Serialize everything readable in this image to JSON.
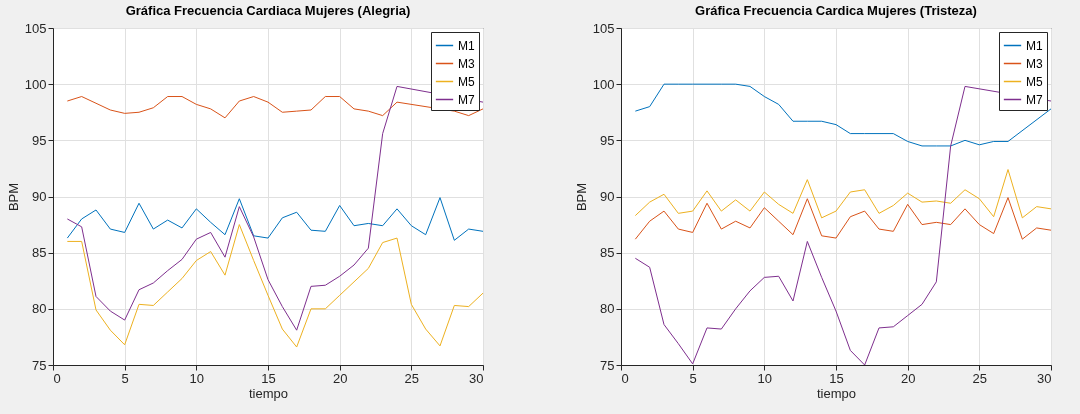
{
  "chart_data": [
    {
      "type": "line",
      "title": "Gráfica Frecuencia Cardiaca Mujeres (Alegria)",
      "xlabel": "tiempo",
      "ylabel": "BPM",
      "x": [
        1,
        2,
        3,
        4,
        5,
        6,
        7,
        8,
        9,
        10,
        11,
        12,
        13,
        14,
        15,
        16,
        17,
        18,
        19,
        20,
        21,
        22,
        23,
        24,
        25,
        26,
        27,
        28,
        29,
        30
      ],
      "xlim": [
        0,
        30
      ],
      "xticks": [
        0,
        5,
        10,
        15,
        20,
        25,
        30
      ],
      "ylim": [
        75,
        105
      ],
      "yticks": [
        75,
        80,
        85,
        90,
        95,
        100,
        105
      ],
      "grid": true,
      "legend": "top right",
      "line_style": "solid",
      "series": [
        {
          "name": "M1",
          "color": "#0072bd",
          "values": [
            86.3,
            88.0,
            88.8,
            87.1,
            86.8,
            89.4,
            87.1,
            87.9,
            87.2,
            88.9,
            87.7,
            86.6,
            89.8,
            86.5,
            86.3,
            88.1,
            88.6,
            87.0,
            86.9,
            89.2,
            87.4,
            87.6,
            87.4,
            88.9,
            87.4,
            86.6,
            89.9,
            86.1,
            87.1,
            86.9
          ]
        },
        {
          "name": "M3",
          "color": "#d95319",
          "values": [
            98.5,
            98.9,
            98.3,
            97.7,
            97.4,
            97.5,
            97.9,
            98.9,
            98.9,
            98.2,
            97.8,
            97.0,
            98.5,
            98.9,
            98.4,
            97.5,
            97.6,
            97.7,
            98.9,
            98.9,
            97.8,
            97.6,
            97.2,
            98.4,
            null,
            null,
            null,
            97.6,
            97.2,
            97.8
          ]
        },
        {
          "name": "M5",
          "color": "#edb120",
          "values": [
            86.0,
            86.0,
            79.9,
            78.1,
            76.8,
            80.4,
            80.3,
            81.5,
            82.7,
            84.3,
            85.1,
            83.0,
            87.5,
            84.3,
            81.2,
            78.2,
            76.6,
            80.0,
            80.0,
            81.2,
            82.4,
            83.6,
            85.9,
            86.3,
            80.4,
            78.2,
            76.7,
            80.3,
            80.2,
            81.4
          ]
        },
        {
          "name": "M7",
          "color": "#7e2f8e",
          "values": [
            88.0,
            87.3,
            81.1,
            79.8,
            79.0,
            81.7,
            82.3,
            83.4,
            84.4,
            86.2,
            86.8,
            84.6,
            89.1,
            86.4,
            82.6,
            80.2,
            78.1,
            82.0,
            82.1,
            82.9,
            83.9,
            85.4,
            95.6,
            99.8,
            null,
            null,
            null,
            null,
            null,
            98.4
          ]
        }
      ]
    },
    {
      "type": "line",
      "title": "Gráfica Frecuencia Cardica Mujeres (Tristeza)",
      "xlabel": "tiempo",
      "ylabel": "BPM",
      "x": [
        1,
        2,
        3,
        4,
        5,
        6,
        7,
        8,
        9,
        10,
        11,
        12,
        13,
        14,
        15,
        16,
        17,
        18,
        19,
        20,
        21,
        22,
        23,
        24,
        25,
        26,
        27,
        28,
        29,
        30
      ],
      "xlim": [
        0,
        30
      ],
      "xticks": [
        0,
        5,
        10,
        15,
        20,
        25,
        30
      ],
      "ylim": [
        75,
        105
      ],
      "yticks": [
        75,
        80,
        85,
        90,
        95,
        100,
        105
      ],
      "grid": true,
      "legend": "top right",
      "line_style": "solid",
      "series": [
        {
          "name": "M1",
          "color": "#0072bd",
          "values": [
            97.6,
            98.0,
            100,
            100,
            100,
            100,
            100,
            100,
            99.8,
            98.9,
            98.2,
            96.7,
            96.7,
            96.7,
            96.4,
            95.6,
            95.6,
            95.6,
            95.6,
            94.9,
            94.5,
            94.5,
            94.5,
            95.0,
            94.6,
            94.9,
            94.9,
            null,
            null,
            97.8
          ]
        },
        {
          "name": "M3",
          "color": "#d95319",
          "values": [
            86.2,
            87.8,
            88.7,
            87.1,
            86.8,
            89.4,
            87.1,
            87.8,
            87.2,
            89.0,
            87.8,
            86.6,
            89.8,
            86.5,
            86.3,
            88.2,
            88.7,
            87.1,
            86.9,
            89.3,
            87.5,
            87.7,
            87.5,
            88.9,
            87.5,
            86.7,
            89.9,
            86.2,
            87.2,
            87.0
          ]
        },
        {
          "name": "M5",
          "color": "#edb120",
          "values": [
            88.3,
            89.5,
            90.2,
            88.5,
            88.7,
            90.5,
            88.7,
            89.7,
            88.7,
            90.4,
            89.3,
            88.5,
            91.5,
            88.1,
            88.7,
            90.4,
            90.6,
            88.5,
            89.2,
            90.3,
            89.5,
            89.6,
            89.4,
            90.6,
            89.8,
            88.2,
            92.4,
            88.1,
            89.1,
            88.9
          ]
        },
        {
          "name": "M7",
          "color": "#7e2f8e",
          "values": [
            84.5,
            83.7,
            78.6,
            76.9,
            75.1,
            78.3,
            78.2,
            80.0,
            81.6,
            82.8,
            82.9,
            80.7,
            86.0,
            82.8,
            79.8,
            76.3,
            75.0,
            78.3,
            78.4,
            79.4,
            80.4,
            82.4,
            94.5,
            99.8,
            null,
            null,
            null,
            null,
            null,
            98.5
          ]
        }
      ]
    }
  ]
}
